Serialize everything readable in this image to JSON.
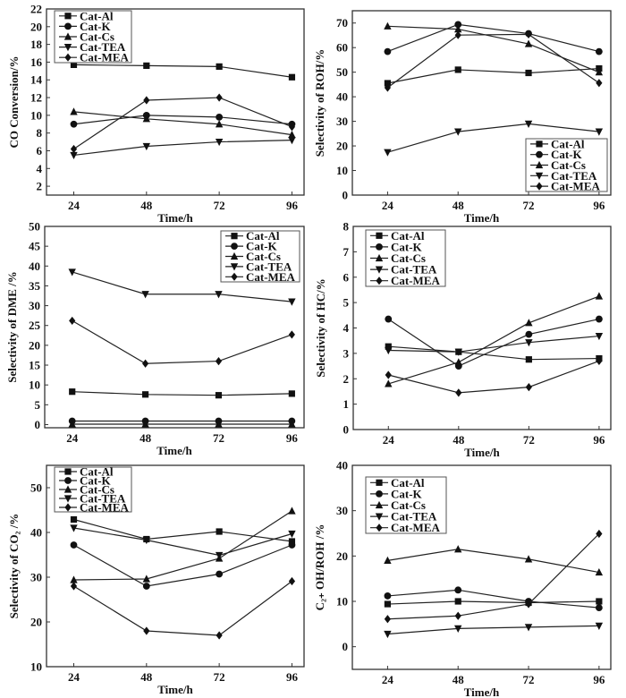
{
  "figure": {
    "legend_entries": [
      "Cat-Al",
      "Cat-K",
      "Cat-Cs",
      "Cat-TEA",
      "Cat-MEA"
    ],
    "marker_shapes": {
      "Cat-Al": "square",
      "Cat-K": "circle",
      "Cat-Cs": "triangle-up",
      "Cat-TEA": "triangle-down",
      "Cat-MEA": "diamond"
    }
  },
  "chart_data": [
    {
      "id": "co-conversion",
      "type": "line",
      "title": "",
      "xlabel": "Time/h",
      "ylabel": "CO Conversion/%",
      "categories": [
        "24",
        "48",
        "72",
        "96"
      ],
      "x": [
        24,
        48,
        72,
        96
      ],
      "xlim": [
        15,
        100
      ],
      "ylim": [
        1,
        22
      ],
      "yticks": [
        2,
        4,
        6,
        8,
        10,
        12,
        14,
        16,
        18,
        20,
        22
      ],
      "legend_position": "top-left",
      "grid": false,
      "series": [
        {
          "name": "Cat-Al",
          "values": [
            15.7,
            15.6,
            15.5,
            14.3
          ]
        },
        {
          "name": "Cat-K",
          "values": [
            9.0,
            10.0,
            9.8,
            9.0
          ]
        },
        {
          "name": "Cat-Cs",
          "values": [
            10.4,
            9.6,
            9.0,
            7.8
          ]
        },
        {
          "name": "Cat-TEA",
          "values": [
            5.5,
            6.5,
            7.0,
            7.2
          ]
        },
        {
          "name": "Cat-MEA",
          "values": [
            6.2,
            11.7,
            12.0,
            8.7
          ]
        }
      ]
    },
    {
      "id": "roh-selectivity",
      "type": "line",
      "title": "",
      "xlabel": "Time/h",
      "ylabel": "Selectivity of ROH/%",
      "categories": [
        "24",
        "48",
        "72",
        "96"
      ],
      "x": [
        24,
        48,
        72,
        96
      ],
      "xlim": [
        12,
        100
      ],
      "ylim": [
        0,
        75
      ],
      "yticks": [
        0,
        10,
        20,
        30,
        40,
        50,
        60,
        70
      ],
      "legend_position": "bottom-right",
      "grid": false,
      "series": [
        {
          "name": "Cat-Al",
          "values": [
            45.5,
            51.0,
            49.7,
            51.5
          ]
        },
        {
          "name": "Cat-K",
          "values": [
            58.4,
            69.4,
            65.7,
            58.4
          ]
        },
        {
          "name": "Cat-Cs",
          "values": [
            68.7,
            67.5,
            61.5,
            50.0
          ]
        },
        {
          "name": "Cat-TEA",
          "values": [
            17.4,
            25.8,
            29.0,
            25.8
          ]
        },
        {
          "name": "Cat-MEA",
          "values": [
            43.7,
            65.1,
            65.4,
            45.6
          ]
        }
      ]
    },
    {
      "id": "dme-selectivity",
      "type": "line",
      "title": "",
      "xlabel": "Time/h",
      "ylabel": "Selectivity of DME /%",
      "categories": [
        "24",
        "48",
        "72",
        "96"
      ],
      "x": [
        24,
        48,
        72,
        96
      ],
      "xlim": [
        15,
        100
      ],
      "ylim": [
        -0.8,
        50
      ],
      "yticks": [
        0,
        5,
        10,
        15,
        20,
        25,
        30,
        35,
        40,
        45,
        50
      ],
      "legend_position": "top-right",
      "grid": false,
      "series": [
        {
          "name": "Cat-Al",
          "values": [
            8.3,
            7.6,
            7.4,
            7.8
          ]
        },
        {
          "name": "Cat-K",
          "values": [
            0.9,
            0.9,
            0.9,
            0.9
          ]
        },
        {
          "name": "Cat-Cs",
          "values": [
            0.1,
            0.1,
            0.1,
            0.1
          ]
        },
        {
          "name": "Cat-TEA",
          "values": [
            38.5,
            32.9,
            32.9,
            31.0
          ]
        },
        {
          "name": "Cat-MEA",
          "values": [
            26.2,
            15.4,
            16.0,
            22.7
          ]
        }
      ]
    },
    {
      "id": "hc-selectivity",
      "type": "line",
      "title": "",
      "xlabel": "Time/h",
      "ylabel": "Selectivity of HC/%",
      "categories": [
        "24",
        "48",
        "72",
        "96"
      ],
      "x": [
        24,
        48,
        72,
        96
      ],
      "xlim": [
        12,
        100
      ],
      "ylim": [
        0,
        8
      ],
      "yticks": [
        0,
        1,
        2,
        3,
        4,
        5,
        6,
        7,
        8
      ],
      "legend_position": "top-left",
      "grid": false,
      "series": [
        {
          "name": "Cat-Al",
          "values": [
            3.27,
            3.06,
            2.76,
            2.8
          ]
        },
        {
          "name": "Cat-K",
          "values": [
            4.35,
            2.5,
            3.75,
            4.35
          ]
        },
        {
          "name": "Cat-Cs",
          "values": [
            1.8,
            2.65,
            4.2,
            5.25
          ]
        },
        {
          "name": "Cat-TEA",
          "values": [
            3.12,
            3.06,
            3.43,
            3.68
          ]
        },
        {
          "name": "Cat-MEA",
          "values": [
            2.15,
            1.45,
            1.67,
            2.7
          ]
        }
      ]
    },
    {
      "id": "co2-selectivity",
      "type": "line",
      "title": "",
      "xlabel": "Time/h",
      "ylabel": "Selectivity of CO₂ /%",
      "categories": [
        "24",
        "48",
        "72",
        "96"
      ],
      "x": [
        24,
        48,
        72,
        96
      ],
      "xlim": [
        15,
        100
      ],
      "ylim": [
        10,
        55
      ],
      "yticks": [
        10,
        20,
        30,
        40,
        50
      ],
      "legend_position": "top-left",
      "grid": false,
      "series": [
        {
          "name": "Cat-Al",
          "values": [
            42.9,
            38.5,
            40.2,
            38.0
          ]
        },
        {
          "name": "Cat-K",
          "values": [
            37.2,
            28.0,
            30.7,
            37.2
          ]
        },
        {
          "name": "Cat-Cs",
          "values": [
            29.4,
            29.6,
            34.2,
            44.8
          ]
        },
        {
          "name": "Cat-TEA",
          "values": [
            41.0,
            38.3,
            34.9,
            39.7
          ]
        },
        {
          "name": "Cat-MEA",
          "values": [
            28.0,
            18.0,
            17.0,
            29.1
          ]
        }
      ]
    },
    {
      "id": "c2oh-roh-ratio",
      "type": "line",
      "title": "",
      "xlabel": "Time/h",
      "ylabel": "C₂₊ OH/ROH /%",
      "categories": [
        "24",
        "48",
        "72",
        "96"
      ],
      "x": [
        24,
        48,
        72,
        96
      ],
      "xlim": [
        12,
        100
      ],
      "ylim": [
        -5,
        40
      ],
      "yticks": [
        0,
        10,
        20,
        30,
        40
      ],
      "legend_position": "top-left",
      "grid": false,
      "series": [
        {
          "name": "Cat-Al",
          "values": [
            9.4,
            10.0,
            9.7,
            10.0
          ]
        },
        {
          "name": "Cat-K",
          "values": [
            11.2,
            12.5,
            10.0,
            8.6
          ]
        },
        {
          "name": "Cat-Cs",
          "values": [
            19.0,
            21.5,
            19.3,
            16.4
          ]
        },
        {
          "name": "Cat-TEA",
          "values": [
            2.8,
            4.0,
            4.3,
            4.6
          ]
        },
        {
          "name": "Cat-MEA",
          "values": [
            6.1,
            6.8,
            9.4,
            24.9
          ]
        }
      ]
    }
  ]
}
